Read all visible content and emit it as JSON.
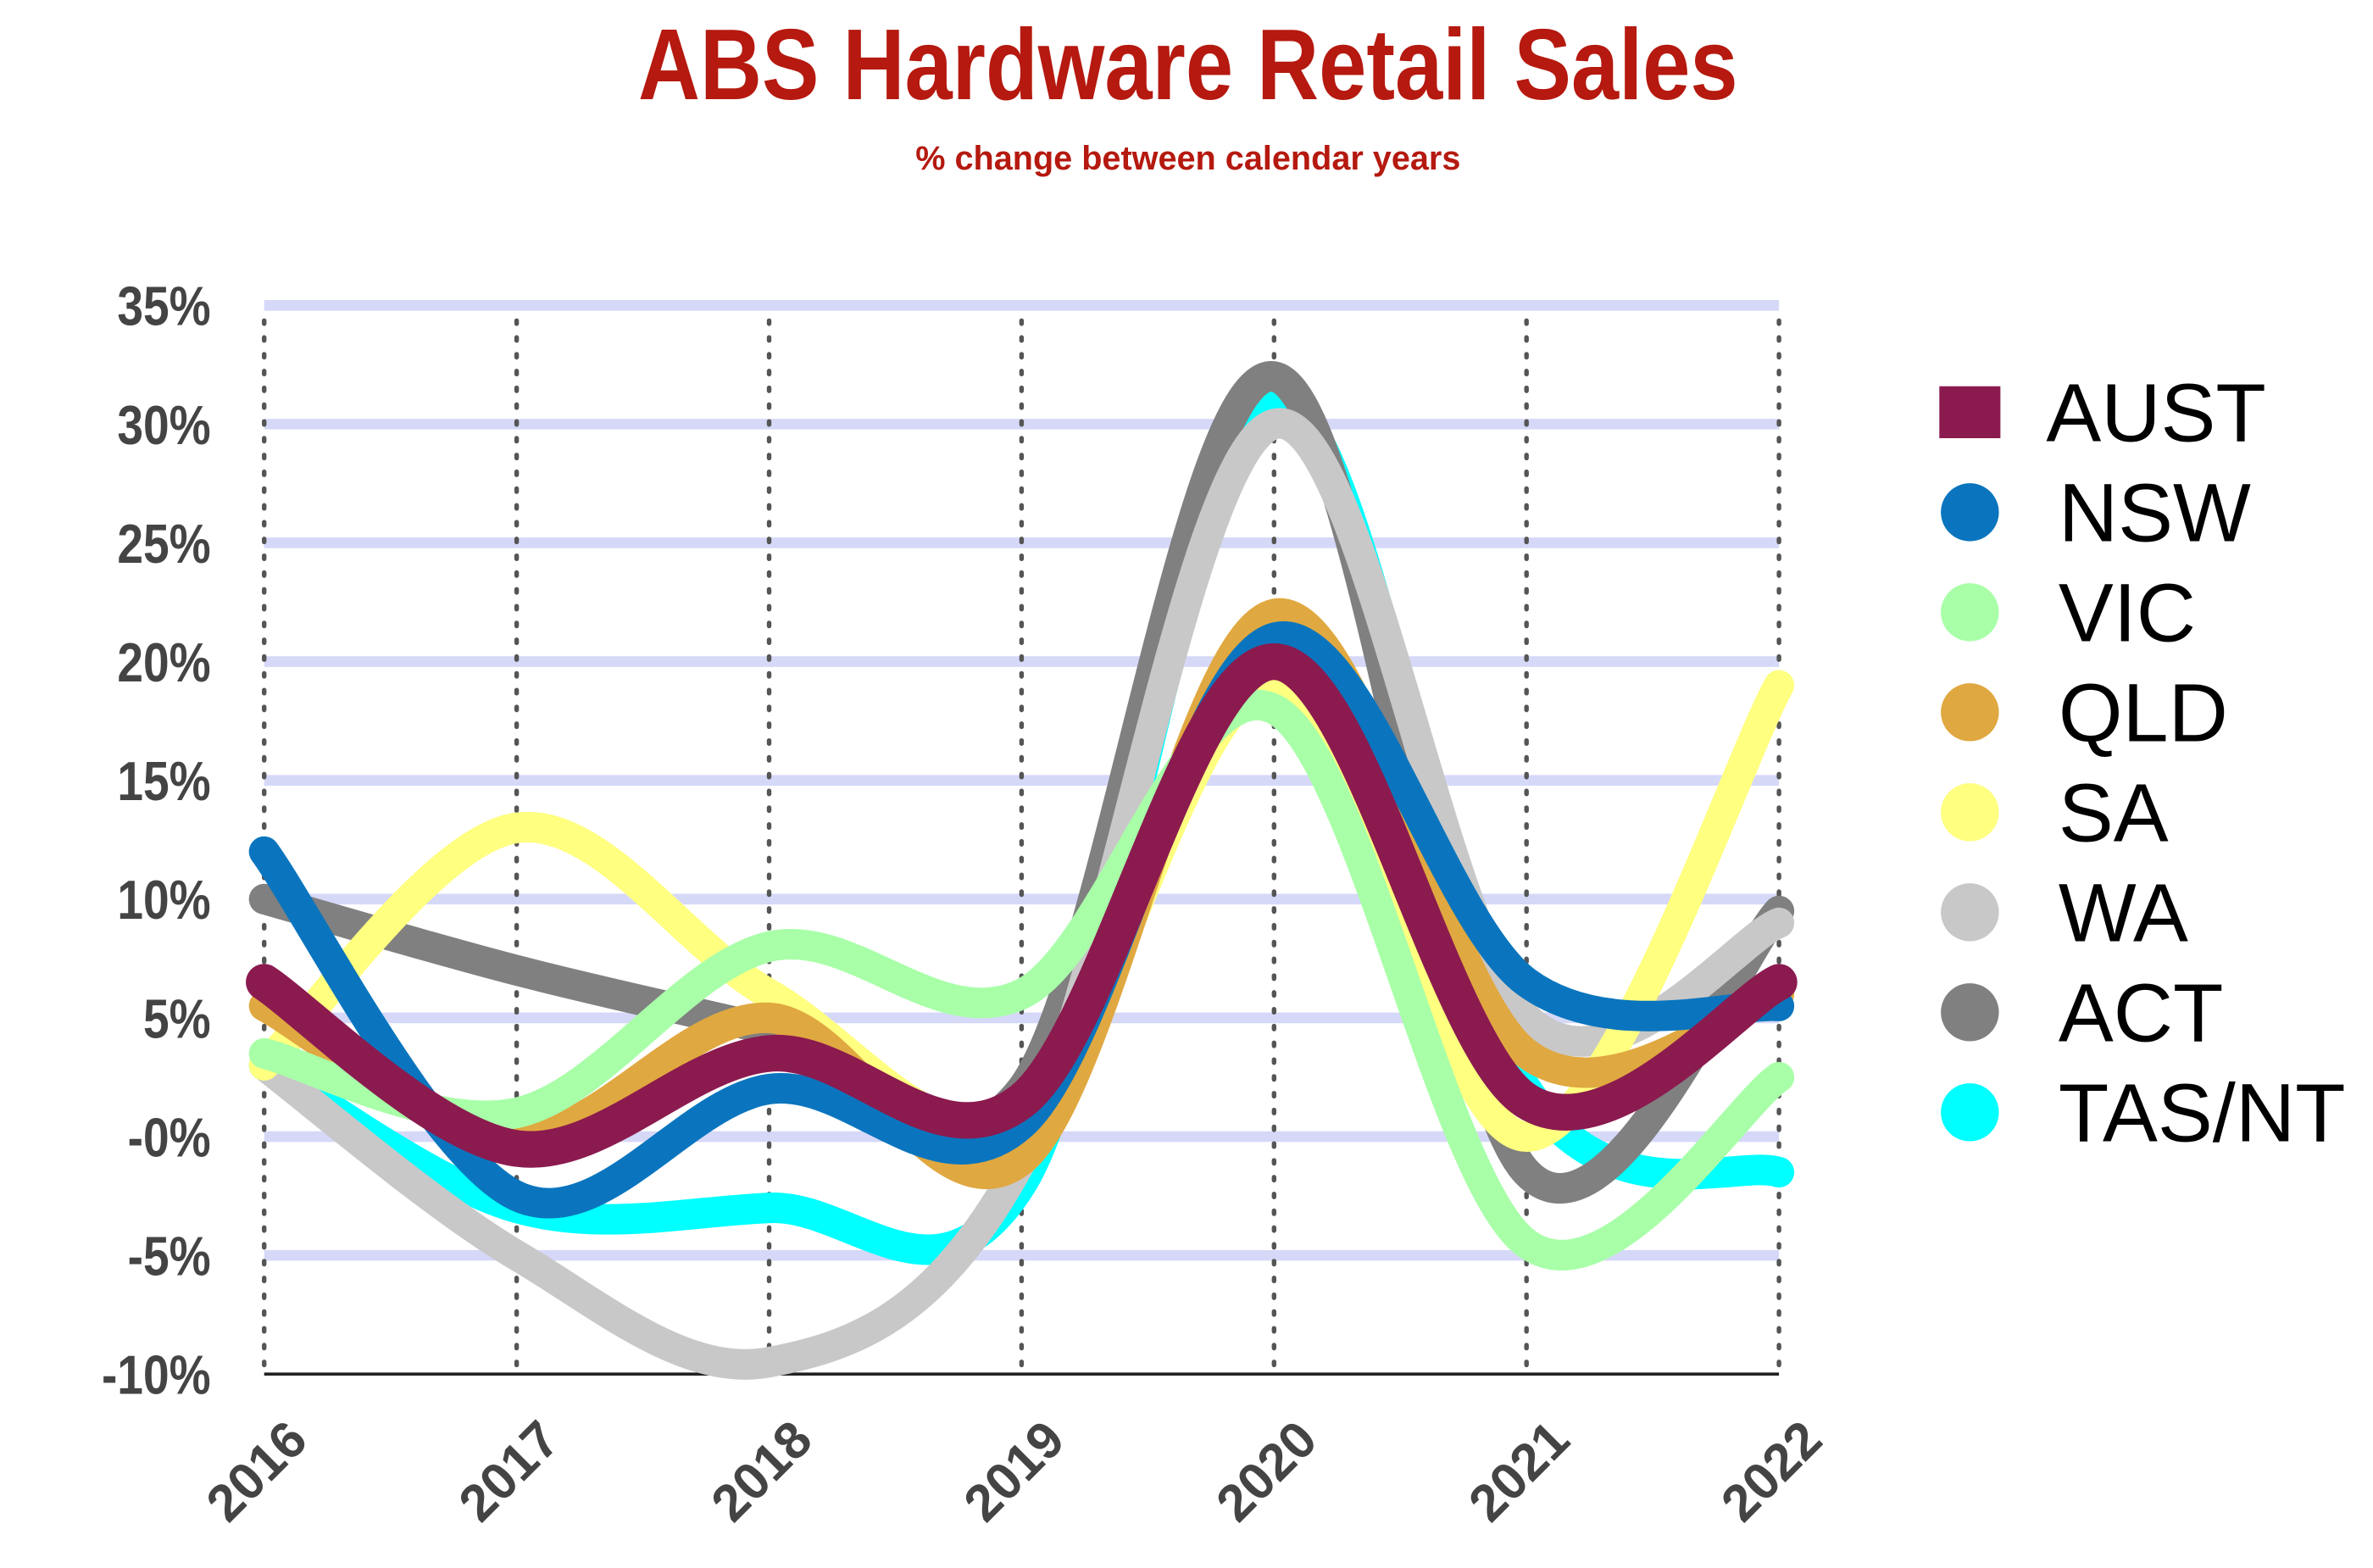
{
  "chart_data": {
    "type": "line",
    "title": "ABS Hardware Retail Sales",
    "subtitle": "% change between calendar years",
    "categories": [
      "2016",
      "2017",
      "2018",
      "2019",
      "2020",
      "2021",
      "2022"
    ],
    "series": [
      {
        "name": "AUST",
        "color": "#8b1a4f",
        "values": [
          6.5,
          -0.5,
          3.5,
          1.5,
          20,
          1.5,
          6.5
        ]
      },
      {
        "name": "NSW",
        "color": "#0a75be",
        "values": [
          12,
          -2.5,
          2,
          0.5,
          21,
          6.5,
          5.5
        ]
      },
      {
        "name": "VIC",
        "color": "#a8ffa8",
        "values": [
          3.5,
          1,
          8,
          6,
          18,
          -4.5,
          2.5
        ]
      },
      {
        "name": "QLD",
        "color": "#e0a840",
        "values": [
          5.5,
          0,
          5,
          -1,
          22,
          3.5,
          6
        ]
      },
      {
        "name": "SA",
        "color": "#ffff80",
        "values": [
          3,
          13,
          6,
          1,
          19,
          0,
          19
        ]
      },
      {
        "name": "WA",
        "color": "#c8c8c8",
        "values": [
          3,
          -5,
          -9.5,
          -1,
          30,
          5,
          9
        ]
      },
      {
        "name": "ACT",
        "color": "#808080",
        "values": [
          10,
          7,
          4.5,
          2,
          32,
          -1.5,
          9.5
        ]
      },
      {
        "name": "TAS/NT",
        "color": "#00ffff",
        "values": [
          3,
          -3,
          -3,
          -2,
          31,
          2,
          -1.5
        ]
      }
    ],
    "ylim": [
      -10,
      35
    ],
    "yticks": [
      {
        "value": -10,
        "label": "-10%"
      },
      {
        "value": -5,
        "label": "-5%"
      },
      {
        "value": 0,
        "label": "-0%"
      },
      {
        "value": 5,
        "label": "5%"
      },
      {
        "value": 10,
        "label": "10%"
      },
      {
        "value": 15,
        "label": "15%"
      },
      {
        "value": 20,
        "label": "20%"
      },
      {
        "value": 25,
        "label": "25%"
      },
      {
        "value": 30,
        "label": "30%"
      },
      {
        "value": 35,
        "label": "35%"
      }
    ],
    "grid": true,
    "smooth": true,
    "legend": "right"
  }
}
